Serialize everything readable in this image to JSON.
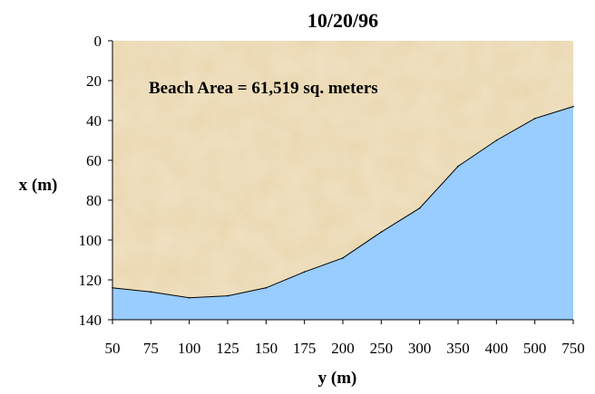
{
  "chart_data": {
    "type": "area",
    "title": "10/20/96",
    "xlabel": "y (m)",
    "ylabel": "x (m)",
    "annotation": "Beach Area = 61,519 sq. meters",
    "categories": [
      "50",
      "75",
      "100",
      "125",
      "150",
      "175",
      "200",
      "250",
      "300",
      "350",
      "400",
      "500",
      "750"
    ],
    "values": [
      124,
      126,
      129,
      128,
      124,
      116,
      109,
      96,
      84,
      63,
      50,
      39,
      33
    ],
    "y_ticks": [
      0,
      20,
      40,
      60,
      80,
      100,
      120,
      140
    ],
    "ylim": [
      0,
      140
    ],
    "y_inverted": true,
    "grid": false,
    "colors": {
      "sand": "#e9d6ad",
      "water": "#99ccff",
      "line": "#000000"
    }
  }
}
